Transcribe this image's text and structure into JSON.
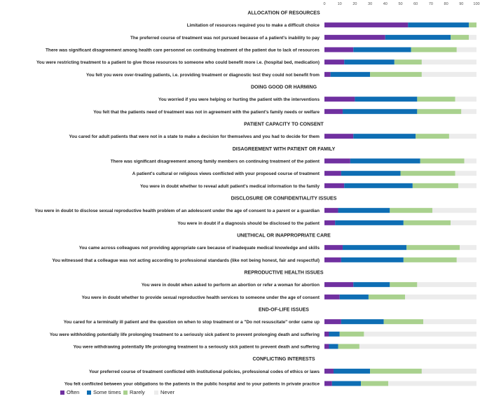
{
  "chart_data": {
    "type": "bar",
    "orientation": "horizontal",
    "stacked": true,
    "xlim": [
      0,
      100
    ],
    "xticks": [
      "0",
      "10",
      "20",
      "30",
      "40",
      "50",
      "60",
      "70",
      "80",
      "90",
      "100"
    ],
    "colors": {
      "Often": "#7030A0",
      "Some times": "#0E6EB4",
      "Rarely": "#A9D18E",
      "Never": "#ECECEC"
    },
    "series_order": [
      "Often",
      "Some times",
      "Rarely",
      "Never"
    ],
    "rows": [
      {
        "kind": "header",
        "label": "ALLOCATION OF RESOURCES"
      },
      {
        "kind": "bar",
        "label": "Limitation of resources required you to make a difficult choice",
        "values": [
          55,
          40,
          5,
          0
        ]
      },
      {
        "kind": "bar",
        "label": "The preferred course of treatment was not pursued because of a patient's inability to pay",
        "values": [
          40,
          43,
          12,
          5
        ]
      },
      {
        "kind": "bar",
        "label": "There was significant disagreement among health care personnel on continuing treatment of the patient due to lack of resources",
        "values": [
          19,
          38,
          30,
          13
        ]
      },
      {
        "kind": "bar",
        "label": "You were restricting treatment to a patient to give those resources to someone who could benefit more i.e. (hospital bed, medication)",
        "values": [
          13,
          33,
          18,
          36
        ]
      },
      {
        "kind": "bar",
        "label": "You felt you were over-treating patients, i.e. providing treatment or diagnostic test they could not benefit from",
        "values": [
          4,
          26,
          34,
          36
        ]
      },
      {
        "kind": "header",
        "label": "DOING GOOD OR HARMING"
      },
      {
        "kind": "bar",
        "label": "You worried if you were helping or hurting the patient with the interventions",
        "values": [
          20,
          41,
          25,
          14
        ]
      },
      {
        "kind": "bar",
        "label": "You felt that the patients need of treatment was not in agreement with the patient's family needs or welfare",
        "values": [
          12,
          49,
          29,
          10
        ]
      },
      {
        "kind": "header",
        "label": "PATIENT CAPACITY TO CONSENT"
      },
      {
        "kind": "bar",
        "label": "You cared for adult patients that were not in a state to make a decision for themselves and you had to decide for them",
        "values": [
          19,
          41,
          22,
          18
        ]
      },
      {
        "kind": "header",
        "label": "DISAGREEMENT WITH PATIENT OR FAMILY"
      },
      {
        "kind": "bar",
        "label": "There was significant disagreement among family members on continuing treatment of the patient",
        "values": [
          17,
          46,
          29,
          8
        ]
      },
      {
        "kind": "bar",
        "label": "A patient's cultural or religious views conflicted with your proposed course of treatment",
        "values": [
          11,
          39,
          36,
          14
        ]
      },
      {
        "kind": "bar",
        "label": "You were in doubt whether to reveal adult patient's medical information to the family",
        "values": [
          13,
          45,
          30,
          12
        ]
      },
      {
        "kind": "header",
        "label": "DISCLOSURE OR CONFIDENTIALITY ISSUES"
      },
      {
        "kind": "bar",
        "label": "You were in doubt to disclose sexual reproductive health problem of an adolescent under the age of consent to a parent or a guardian",
        "values": [
          9,
          34,
          28,
          29
        ]
      },
      {
        "kind": "bar",
        "label": "You were in doubt if a diagnosis should be disclosed to the patient",
        "values": [
          7,
          45,
          31,
          17
        ]
      },
      {
        "kind": "header",
        "label": "UNETHICAL OR INAPPROPRIATE CARE"
      },
      {
        "kind": "bar",
        "label": "You came across colleagues not providing appropriate care because of inadequate medical knowledge and skills",
        "values": [
          12,
          42,
          35,
          11
        ]
      },
      {
        "kind": "bar",
        "label": "You witnessed that a colleague was not acting according to professional standards  (like not being honest, fair and respectful)",
        "values": [
          11,
          41,
          35,
          13
        ]
      },
      {
        "kind": "header",
        "label": "REPRODUCTIVE HEALTH ISSUES"
      },
      {
        "kind": "bar",
        "label": "You were in doubt when asked to perform an abortion or refer a woman for abortion",
        "values": [
          19,
          24,
          18,
          39
        ]
      },
      {
        "kind": "bar",
        "label": "You were in doubt whether to provide sexual reproductive health services to someone under the age of consent",
        "values": [
          10,
          19,
          24,
          47
        ]
      },
      {
        "kind": "header",
        "label": "END-OF-LIFE ISSUES"
      },
      {
        "kind": "bar",
        "label": "You cared for a terminally ill patient and the question on when to stop treatment or a \"Do not resuscitate\" order came up",
        "values": [
          11,
          28,
          26,
          35
        ]
      },
      {
        "kind": "bar",
        "label": "You were withholding potentially life prolonging treatment to a seriously sick patient to prevent prolonging death and suffering",
        "values": [
          3,
          7,
          16,
          74
        ]
      },
      {
        "kind": "bar",
        "label": "You were withdrawing potentially life prolonging treatment to a seriously sick patient to prevent death and suffering",
        "values": [
          3,
          6,
          14,
          77
        ]
      },
      {
        "kind": "header",
        "label": "CONFLICTING INTERESTS"
      },
      {
        "kind": "bar",
        "label": "Your preferred course of treatment conflicted with institutional policies, professional codes of ethics or laws",
        "values": [
          6,
          24,
          34,
          36
        ]
      },
      {
        "kind": "bar",
        "label": "You felt conflicted between your obligations to the patients in the public hospital and to your patients in private practice",
        "values": [
          5,
          19,
          18,
          58
        ]
      }
    ],
    "legend": [
      "Often",
      "Some times",
      "Rarely",
      "Never"
    ]
  }
}
